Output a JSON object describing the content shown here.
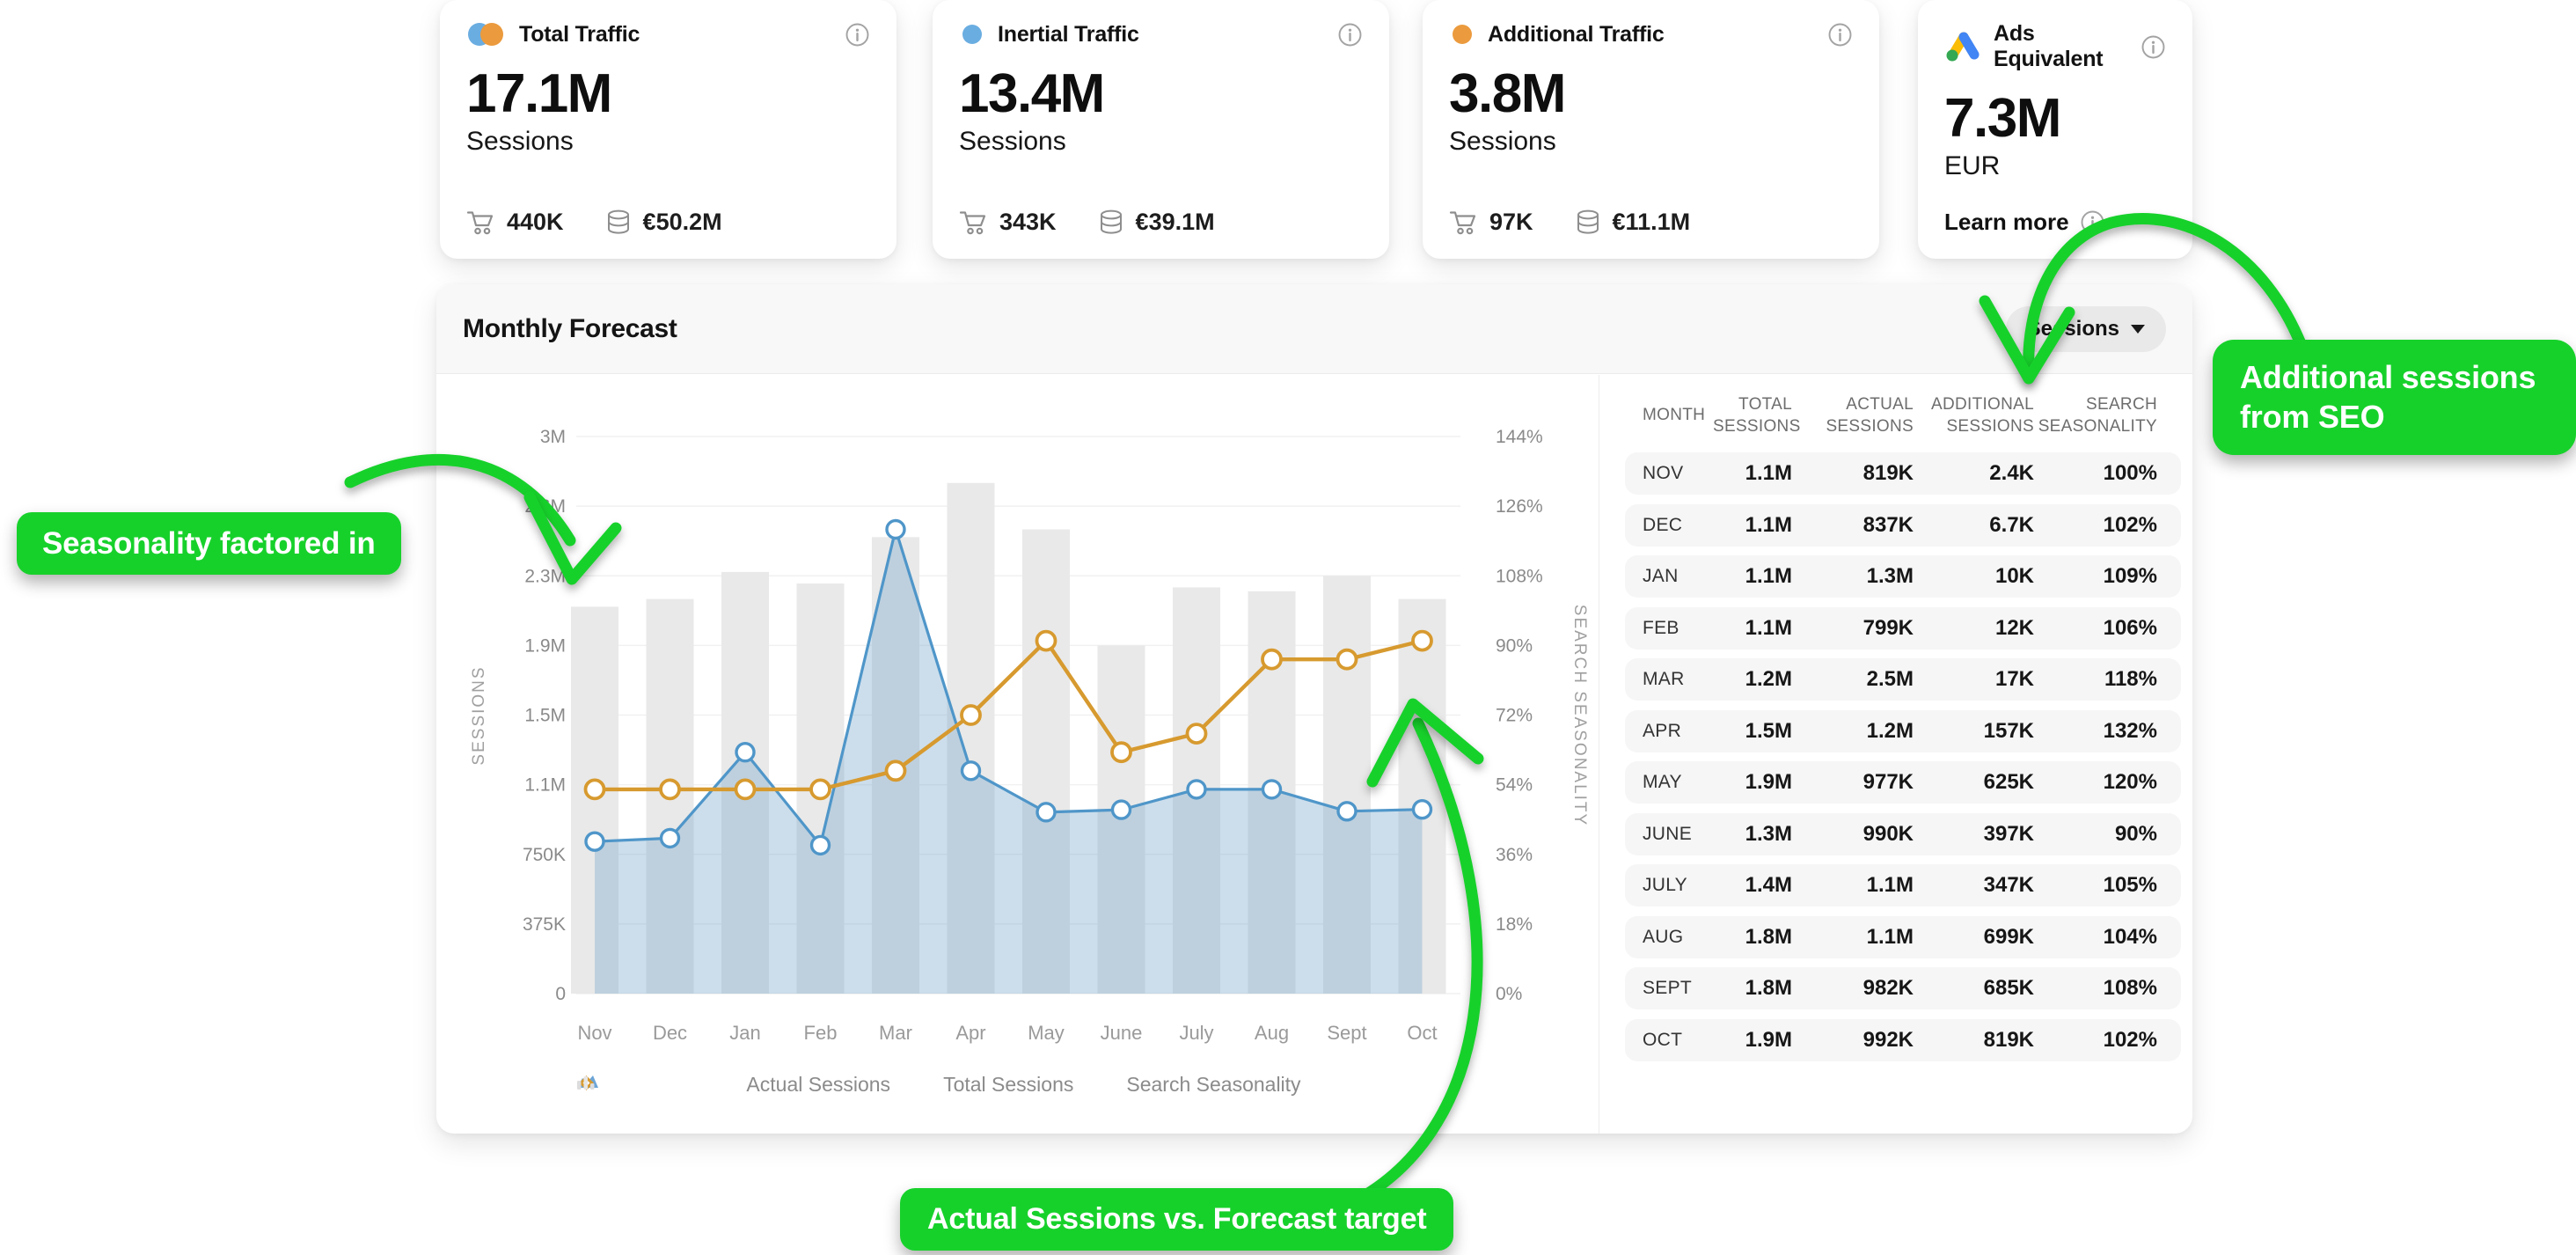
{
  "colors": {
    "accent_green": "#17d12b",
    "chart_blue": "#4f96c9",
    "chart_blue_fill": "rgba(122,168,206,0.38)",
    "chart_orange": "#d79a2f",
    "dot_blue": "#6aade1",
    "dot_orange": "#eb9a3d",
    "bar_gray": "#e9e9e9"
  },
  "kpi_cards": [
    {
      "title": "Total Traffic",
      "icon": "total-traffic-icon",
      "value": "17.1M",
      "unit": "Sessions",
      "cart_count": "440K",
      "revenue": "€50.2M"
    },
    {
      "title": "Inertial Traffic",
      "icon": "inertial-traffic-icon",
      "value": "13.4M",
      "unit": "Sessions",
      "cart_count": "343K",
      "revenue": "€39.1M"
    },
    {
      "title": "Additional Traffic",
      "icon": "additional-traffic-icon",
      "value": "3.8M",
      "unit": "Sessions",
      "cart_count": "97K",
      "revenue": "€11.1M"
    },
    {
      "title": "Ads Equivalent",
      "icon": "ads-equivalent-icon",
      "value": "7.3M",
      "unit": "EUR",
      "learn_more": "Learn more"
    }
  ],
  "forecast": {
    "title": "Monthly Forecast",
    "dropdown": {
      "label": "Sessions"
    },
    "chart_data": {
      "type": "combo",
      "categories": [
        "Nov",
        "Dec",
        "Jan",
        "Feb",
        "Mar",
        "Apr",
        "May",
        "June",
        "July",
        "Aug",
        "Sept",
        "Oct"
      ],
      "series": [
        {
          "name": "Search Seasonality",
          "type": "bar",
          "axis": "right",
          "color": "#e9e9e9",
          "values_pct": [
            100,
            102,
            109,
            106,
            118,
            132,
            120,
            90,
            105,
            104,
            108,
            102
          ]
        },
        {
          "name": "Actual Sessions",
          "type": "area",
          "axis": "left",
          "color": "#4f96c9",
          "values_k": [
            819,
            837,
            1300,
            799,
            2500,
            1200,
            977,
            990,
            1100,
            1100,
            982,
            992
          ]
        },
        {
          "name": "Total Sessions",
          "type": "line",
          "axis": "left",
          "color": "#d79a2f",
          "values_k": [
            1100,
            1100,
            1100,
            1100,
            1200,
            1500,
            1900,
            1300,
            1400,
            1800,
            1800,
            1900
          ]
        }
      ],
      "left_axis": {
        "title": "SESSIONS",
        "max_k": 3000,
        "ticks": [
          "3M",
          "2.6M",
          "2.3M",
          "1.9M",
          "1.5M",
          "1.1M",
          "750K",
          "375K",
          "0"
        ]
      },
      "right_axis": {
        "title": "SEARCH SEASONALITY",
        "max_pct": 144,
        "ticks": [
          "144%",
          "126%",
          "108%",
          "90%",
          "72%",
          "54%",
          "36%",
          "18%",
          "0%"
        ]
      },
      "grid": true,
      "legend_position": "bottom"
    },
    "legend": [
      {
        "label": "Actual Sessions",
        "icon": "legend-area-icon"
      },
      {
        "label": "Total Sessions",
        "icon": "legend-diamond-icon"
      },
      {
        "label": "Search Seasonality",
        "icon": "legend-bars-icon"
      }
    ]
  },
  "table": {
    "headers": [
      "MONTH",
      "TOTAL SESSIONS",
      "ACTUAL SESSIONS",
      "ADDITIONAL SESSIONS",
      "SEARCH SEASONALITY"
    ],
    "rows": [
      [
        "NOV",
        "1.1M",
        "819K",
        "2.4K",
        "100%"
      ],
      [
        "DEC",
        "1.1M",
        "837K",
        "6.7K",
        "102%"
      ],
      [
        "JAN",
        "1.1M",
        "1.3M",
        "10K",
        "109%"
      ],
      [
        "FEB",
        "1.1M",
        "799K",
        "12K",
        "106%"
      ],
      [
        "MAR",
        "1.2M",
        "2.5M",
        "17K",
        "118%"
      ],
      [
        "APR",
        "1.5M",
        "1.2M",
        "157K",
        "132%"
      ],
      [
        "MAY",
        "1.9M",
        "977K",
        "625K",
        "120%"
      ],
      [
        "JUNE",
        "1.3M",
        "990K",
        "397K",
        "90%"
      ],
      [
        "JULY",
        "1.4M",
        "1.1M",
        "347K",
        "105%"
      ],
      [
        "AUG",
        "1.8M",
        "1.1M",
        "699K",
        "104%"
      ],
      [
        "SEPT",
        "1.8M",
        "982K",
        "685K",
        "108%"
      ],
      [
        "OCT",
        "1.9M",
        "992K",
        "819K",
        "102%"
      ]
    ]
  },
  "annotations": [
    {
      "id": "seasonality",
      "text": "Seasonality factored in"
    },
    {
      "id": "additional-seo",
      "text": "Additional sessions from SEO"
    },
    {
      "id": "actual-vs-forecast",
      "text": "Actual Sessions vs. Forecast target"
    }
  ]
}
